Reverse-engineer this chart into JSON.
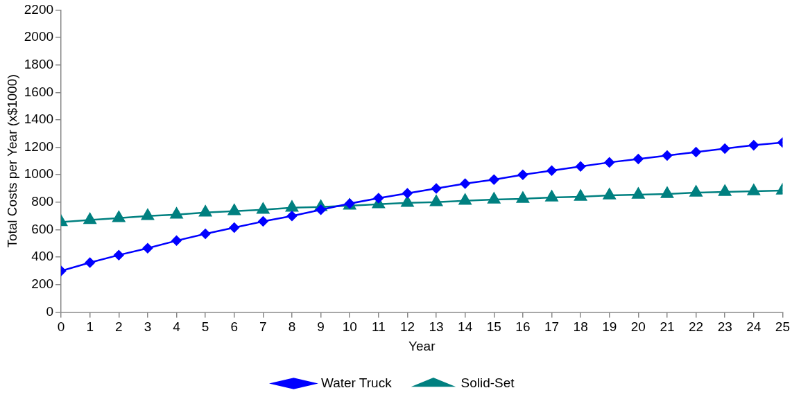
{
  "chart_data": {
    "type": "line",
    "xlabel": "Year",
    "ylabel": "Total Costs per Year (x$1000)",
    "x": [
      0,
      1,
      2,
      3,
      4,
      5,
      6,
      7,
      8,
      9,
      10,
      11,
      12,
      13,
      14,
      15,
      16,
      17,
      18,
      19,
      20,
      21,
      22,
      23,
      24,
      25
    ],
    "xlim": [
      0,
      25
    ],
    "xticks": [
      0,
      1,
      2,
      3,
      4,
      5,
      6,
      7,
      8,
      9,
      10,
      11,
      12,
      13,
      14,
      15,
      16,
      17,
      18,
      19,
      20,
      21,
      22,
      23,
      24,
      25
    ],
    "ylim": [
      0,
      2200
    ],
    "yticks": [
      0,
      200,
      400,
      600,
      800,
      1000,
      1200,
      1400,
      1600,
      1800,
      2000,
      2200
    ],
    "grid": false,
    "legend": "bottom",
    "series": [
      {
        "name": "Water Truck",
        "color": "#0000ff",
        "marker": "diamond",
        "values": [
          300,
          360,
          415,
          465,
          520,
          570,
          615,
          660,
          700,
          745,
          790,
          830,
          865,
          900,
          935,
          965,
          1000,
          1030,
          1060,
          1090,
          1115,
          1140,
          1165,
          1190,
          1215,
          1235
        ]
      },
      {
        "name": "Solid-Set",
        "color": "#008080",
        "marker": "triangle",
        "values": [
          655,
          670,
          685,
          700,
          710,
          725,
          735,
          745,
          760,
          765,
          775,
          785,
          795,
          800,
          810,
          820,
          825,
          835,
          840,
          850,
          855,
          860,
          870,
          875,
          880,
          885
        ]
      }
    ]
  }
}
